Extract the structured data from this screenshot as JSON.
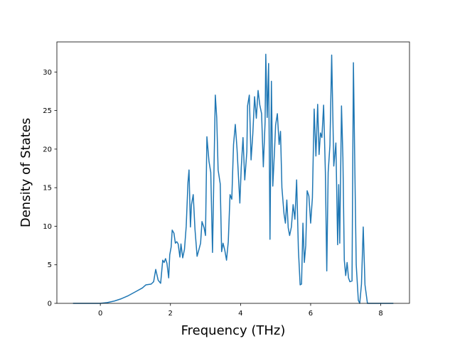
{
  "chart_data": {
    "type": "line",
    "x_label": "Frequency (THz)",
    "y_label": "Density of States",
    "xlim": [
      -1.24,
      8.82
    ],
    "ylim": [
      0,
      33.9
    ],
    "xticks": [
      0,
      2,
      4,
      6,
      8
    ],
    "yticks": [
      0,
      5,
      10,
      15,
      20,
      25,
      30
    ],
    "x": [
      -0.78,
      0,
      0.2,
      0.4,
      0.6,
      0.8,
      1.0,
      1.2,
      1.3,
      1.45,
      1.52,
      1.58,
      1.65,
      1.72,
      1.78,
      1.82,
      1.86,
      1.9,
      1.95,
      1.98,
      2.02,
      2.05,
      2.1,
      2.14,
      2.18,
      2.22,
      2.27,
      2.3,
      2.35,
      2.4,
      2.45,
      2.5,
      2.53,
      2.57,
      2.6,
      2.65,
      2.7,
      2.76,
      2.82,
      2.86,
      2.9,
      2.96,
      3.0,
      3.04,
      3.1,
      3.15,
      3.2,
      3.28,
      3.32,
      3.36,
      3.42,
      3.46,
      3.5,
      3.55,
      3.6,
      3.65,
      3.7,
      3.75,
      3.8,
      3.85,
      3.9,
      3.98,
      4.02,
      4.07,
      4.12,
      4.18,
      4.2,
      4.25,
      4.3,
      4.35,
      4.4,
      4.45,
      4.5,
      4.55,
      4.6,
      4.65,
      4.7,
      4.72,
      4.76,
      4.8,
      4.84,
      4.88,
      4.92,
      4.97,
      5.0,
      5.05,
      5.1,
      5.14,
      5.18,
      5.24,
      5.28,
      5.32,
      5.36,
      5.4,
      5.45,
      5.5,
      5.55,
      5.6,
      5.65,
      5.7,
      5.74,
      5.78,
      5.82,
      5.86,
      5.9,
      5.95,
      6.0,
      6.05,
      6.1,
      6.15,
      6.2,
      6.24,
      6.28,
      6.32,
      6.37,
      6.42,
      6.46,
      6.5,
      6.55,
      6.6,
      6.66,
      6.72,
      6.77,
      6.8,
      6.83,
      6.88,
      6.92,
      6.96,
      7.0,
      7.04,
      7.08,
      7.12,
      7.18,
      7.22,
      7.26,
      7.3,
      7.36,
      7.4,
      7.45,
      7.5,
      7.55,
      7.62,
      8.36
    ],
    "series": [
      {
        "color": "#1f77b4",
        "values": [
          0,
          0,
          0.1,
          0.3,
          0.6,
          1.0,
          1.5,
          2.0,
          2.4,
          2.5,
          2.8,
          4.4,
          3.0,
          2.6,
          5.6,
          5.3,
          5.8,
          5.2,
          3.3,
          6.3,
          7.3,
          9.5,
          9.1,
          7.8,
          8.0,
          7.7,
          6.0,
          7.7,
          5.9,
          7.0,
          10.0,
          15.7,
          17.3,
          9.9,
          12.8,
          14.1,
          9.6,
          6.1,
          7.1,
          7.8,
          10.6,
          9.8,
          8.8,
          21.6,
          18.4,
          17.0,
          6.6,
          27.0,
          24.1,
          17.3,
          15.5,
          6.7,
          7.8,
          6.9,
          5.6,
          8.0,
          14.1,
          13.5,
          20.6,
          23.2,
          20.0,
          13.0,
          17.6,
          21.5,
          16.0,
          19.7,
          25.6,
          27.0,
          18.6,
          22.0,
          26.8,
          24.0,
          27.6,
          25.7,
          24.6,
          17.7,
          23.5,
          32.3,
          24.1,
          31.1,
          8.3,
          28.8,
          15.2,
          19.9,
          23.1,
          24.6,
          20.6,
          22.3,
          15.0,
          11.6,
          10.4,
          13.4,
          9.8,
          8.8,
          9.9,
          12.8,
          10.9,
          16.0,
          7.0,
          2.4,
          2.5,
          10.4,
          5.3,
          7.5,
          14.6,
          13.9,
          10.4,
          13.7,
          25.2,
          19.1,
          25.8,
          19.3,
          22.1,
          21.5,
          25.7,
          17.0,
          4.2,
          17.0,
          20.5,
          32.2,
          17.8,
          20.8,
          7.6,
          15.4,
          7.8,
          25.6,
          18.9,
          5.6,
          3.6,
          5.3,
          3.3,
          2.8,
          2.9,
          31.2,
          17.6,
          5.0,
          0.4,
          0,
          2.5,
          9.9,
          2.4,
          0,
          0
        ]
      }
    ]
  }
}
